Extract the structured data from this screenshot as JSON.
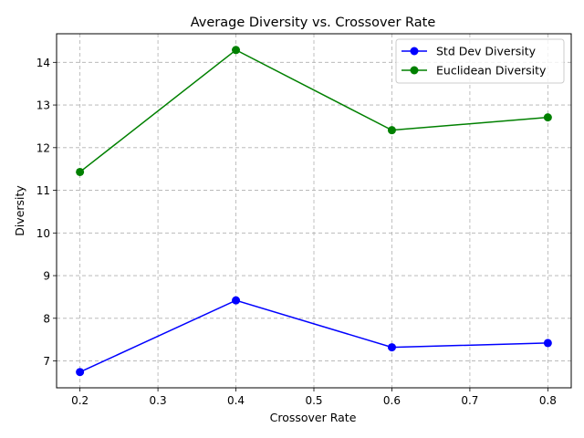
{
  "chart_data": {
    "type": "line",
    "title": "Average Diversity vs. Crossover Rate",
    "xlabel": "Crossover Rate",
    "ylabel": "Diversity",
    "x": [
      0.2,
      0.4,
      0.6,
      0.8
    ],
    "xlim": [
      0.17,
      0.83
    ],
    "ylim": [
      6.37,
      14.67
    ],
    "xticks": [
      "0.2",
      "0.3",
      "0.4",
      "0.5",
      "0.6",
      "0.7",
      "0.8"
    ],
    "yticks": [
      "7",
      "8",
      "9",
      "10",
      "11",
      "12",
      "13",
      "14"
    ],
    "grid": true,
    "legend_position": "top-right",
    "series": [
      {
        "name": "Std Dev Diversity",
        "color": "#0000ff",
        "marker": "circle",
        "values": [
          6.74,
          8.42,
          7.32,
          7.42
        ]
      },
      {
        "name": "Euclidean Diversity",
        "color": "#008000",
        "marker": "circle",
        "values": [
          11.43,
          14.29,
          12.41,
          12.71
        ]
      }
    ]
  }
}
